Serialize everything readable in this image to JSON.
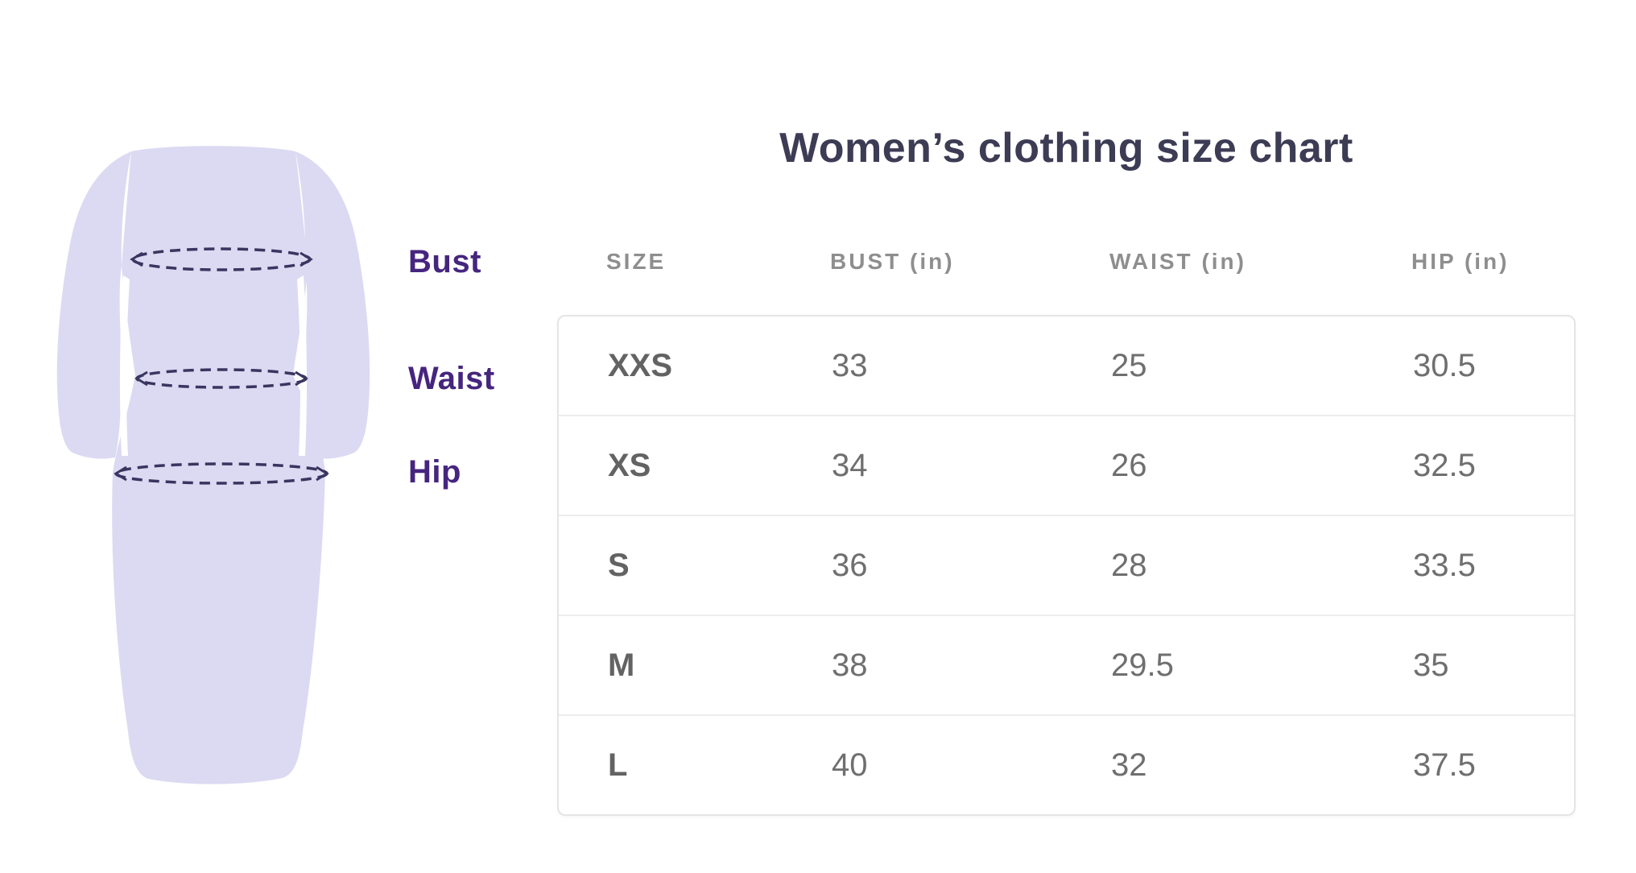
{
  "title": "Women’s clothing size chart",
  "figure": {
    "type": "dress-measurement-illustration",
    "dress_fill": "#dcdaf2",
    "dash_color": "#3a3560",
    "label_color": "#46257f",
    "labels": {
      "bust": "Bust",
      "waist": "Waist",
      "hip": "Hip"
    }
  },
  "table": {
    "headers": [
      "SIZE",
      "BUST (in)",
      "WAIST (in)",
      "HIP (in)"
    ],
    "rows": [
      [
        "XXS",
        "33",
        "25",
        "30.5"
      ],
      [
        "XS",
        "34",
        "26",
        "32.5"
      ],
      [
        "S",
        "36",
        "28",
        "33.5"
      ],
      [
        "M",
        "38",
        "29.5",
        "35"
      ],
      [
        "L",
        "40",
        "32",
        "37.5"
      ]
    ]
  },
  "chart_data": {
    "type": "table",
    "title": "Women’s clothing size chart",
    "columns": [
      "SIZE",
      "BUST (in)",
      "WAIST (in)",
      "HIP (in)"
    ],
    "units": "inches",
    "sizes": [
      "XXS",
      "XS",
      "S",
      "M",
      "L"
    ],
    "series": [
      {
        "name": "BUST (in)",
        "values": [
          33,
          34,
          36,
          38,
          40
        ]
      },
      {
        "name": "WAIST (in)",
        "values": [
          25,
          26,
          28,
          29.5,
          32
        ]
      },
      {
        "name": "HIP (in)",
        "values": [
          30.5,
          32.5,
          33.5,
          35,
          37.5
        ]
      }
    ],
    "measurement_annotations": [
      "Bust",
      "Waist",
      "Hip"
    ]
  }
}
